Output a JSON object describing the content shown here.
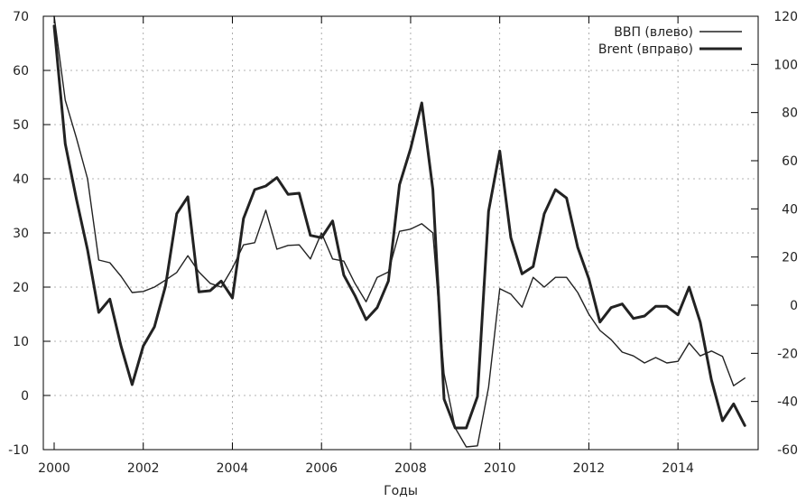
{
  "chart_data": {
    "type": "line",
    "xlabel": "Годы",
    "xlim": [
      2000,
      2015.8
    ],
    "x_ticks": [
      2000,
      2002,
      2004,
      2006,
      2008,
      2010,
      2012,
      2014
    ],
    "y_left": {
      "lim": [
        -10,
        70
      ],
      "ticks": [
        -10,
        0,
        10,
        20,
        30,
        40,
        50,
        60,
        70
      ]
    },
    "y_right": {
      "lim": [
        -60,
        120
      ],
      "ticks": [
        -60,
        -40,
        -20,
        0,
        20,
        40,
        60,
        80,
        100,
        120
      ]
    },
    "grid": true,
    "legend_position": "top-right",
    "series": [
      {
        "name": "ВВП (влево)",
        "axis": "left",
        "color": "#222222",
        "style": "thin",
        "points": [
          [
            2000.0,
            70.0
          ],
          [
            2000.25,
            54.5
          ],
          [
            2000.5,
            47.5
          ],
          [
            2000.75,
            40.0
          ],
          [
            2001.0,
            25.0
          ],
          [
            2001.25,
            24.5
          ],
          [
            2001.5,
            22.0
          ],
          [
            2001.75,
            19.0
          ],
          [
            2002.0,
            19.2
          ],
          [
            2002.25,
            20.0
          ],
          [
            2002.5,
            21.3
          ],
          [
            2002.75,
            22.7
          ],
          [
            2003.0,
            25.8
          ],
          [
            2003.25,
            22.8
          ],
          [
            2003.5,
            20.7
          ],
          [
            2003.75,
            20.0
          ],
          [
            2004.0,
            23.5
          ],
          [
            2004.25,
            27.8
          ],
          [
            2004.5,
            28.2
          ],
          [
            2004.75,
            34.2
          ],
          [
            2005.0,
            27.0
          ],
          [
            2005.25,
            27.7
          ],
          [
            2005.5,
            27.8
          ],
          [
            2005.75,
            25.2
          ],
          [
            2006.0,
            30.0
          ],
          [
            2006.25,
            25.2
          ],
          [
            2006.5,
            24.8
          ],
          [
            2006.75,
            20.7
          ],
          [
            2007.0,
            17.3
          ],
          [
            2007.25,
            21.8
          ],
          [
            2007.5,
            22.8
          ],
          [
            2007.75,
            30.3
          ],
          [
            2008.0,
            30.7
          ],
          [
            2008.25,
            31.7
          ],
          [
            2008.5,
            30.0
          ],
          [
            2008.75,
            4.0
          ],
          [
            2009.0,
            -6.0
          ],
          [
            2009.25,
            -9.5
          ],
          [
            2009.5,
            -9.3
          ],
          [
            2009.75,
            1.5
          ],
          [
            2010.0,
            19.7
          ],
          [
            2010.25,
            18.7
          ],
          [
            2010.5,
            16.3
          ],
          [
            2010.75,
            21.8
          ],
          [
            2011.0,
            20.0
          ],
          [
            2011.25,
            21.8
          ],
          [
            2011.5,
            21.8
          ],
          [
            2011.75,
            19.0
          ],
          [
            2012.0,
            15.0
          ],
          [
            2012.25,
            12.0
          ],
          [
            2012.5,
            10.3
          ],
          [
            2012.75,
            8.0
          ],
          [
            2013.0,
            7.3
          ],
          [
            2013.25,
            6.0
          ],
          [
            2013.5,
            7.0
          ],
          [
            2013.75,
            6.0
          ],
          [
            2014.0,
            6.3
          ],
          [
            2014.25,
            9.7
          ],
          [
            2014.5,
            7.3
          ],
          [
            2014.75,
            8.2
          ],
          [
            2015.0,
            7.2
          ],
          [
            2015.25,
            1.8
          ],
          [
            2015.5,
            3.2
          ]
        ]
      },
      {
        "name": "Brent (вправо)",
        "axis": "right",
        "color": "#222222",
        "style": "thick",
        "points": [
          [
            2000.0,
            116.0
          ],
          [
            2000.25,
            67.0
          ],
          [
            2000.5,
            44.0
          ],
          [
            2000.75,
            23.0
          ],
          [
            2001.0,
            -3.0
          ],
          [
            2001.25,
            2.5
          ],
          [
            2001.5,
            -17.0
          ],
          [
            2001.75,
            -33.0
          ],
          [
            2002.0,
            -17.0
          ],
          [
            2002.25,
            -9.0
          ],
          [
            2002.5,
            8.0
          ],
          [
            2002.75,
            38.0
          ],
          [
            2003.0,
            45.0
          ],
          [
            2003.25,
            5.5
          ],
          [
            2003.5,
            6.0
          ],
          [
            2003.75,
            10.0
          ],
          [
            2004.0,
            3.0
          ],
          [
            2004.25,
            36.0
          ],
          [
            2004.5,
            48.0
          ],
          [
            2004.75,
            49.5
          ],
          [
            2005.0,
            53.0
          ],
          [
            2005.25,
            46.0
          ],
          [
            2005.5,
            46.5
          ],
          [
            2005.75,
            29.0
          ],
          [
            2006.0,
            28.0
          ],
          [
            2006.25,
            35.0
          ],
          [
            2006.5,
            12.5
          ],
          [
            2006.75,
            4.0
          ],
          [
            2007.0,
            -6.0
          ],
          [
            2007.25,
            -1.0
          ],
          [
            2007.5,
            10.0
          ],
          [
            2007.75,
            50.0
          ],
          [
            2008.0,
            65.0
          ],
          [
            2008.25,
            84.0
          ],
          [
            2008.5,
            48.0
          ],
          [
            2008.75,
            -39.0
          ],
          [
            2009.0,
            -51.0
          ],
          [
            2009.25,
            -51.0
          ],
          [
            2009.5,
            -38.0
          ],
          [
            2009.75,
            39.0
          ],
          [
            2010.0,
            64.0
          ],
          [
            2010.25,
            28.0
          ],
          [
            2010.5,
            13.0
          ],
          [
            2010.75,
            16.0
          ],
          [
            2011.0,
            38.0
          ],
          [
            2011.25,
            48.0
          ],
          [
            2011.5,
            44.5
          ],
          [
            2011.75,
            24.0
          ],
          [
            2012.0,
            11.0
          ],
          [
            2012.25,
            -7.0
          ],
          [
            2012.5,
            -1.0
          ],
          [
            2012.75,
            0.5
          ],
          [
            2013.0,
            -5.5
          ],
          [
            2013.25,
            -4.5
          ],
          [
            2013.5,
            -0.5
          ],
          [
            2013.75,
            -0.5
          ],
          [
            2014.0,
            -4.0
          ],
          [
            2014.25,
            7.5
          ],
          [
            2014.5,
            -7.0
          ],
          [
            2014.75,
            -31.0
          ],
          [
            2015.0,
            -48.0
          ],
          [
            2015.25,
            -41.0
          ],
          [
            2015.5,
            -50.0
          ]
        ]
      }
    ]
  }
}
